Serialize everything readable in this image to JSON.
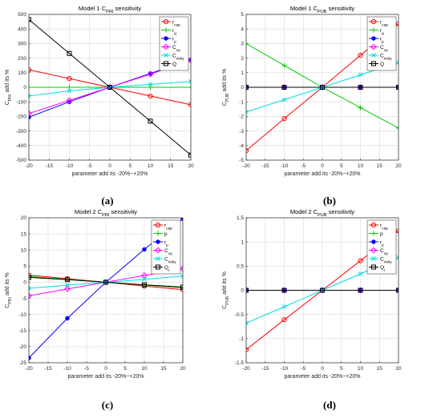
{
  "chart_data": [
    {
      "type": "line",
      "title": "Model 1 C",
      "title_sub": "PRI",
      "title_tail": " sensitivity",
      "xlabel": "parameter add its -20%~+20%",
      "ylabel": "C",
      "ylabel_sub": "PRI",
      "ylabel_tail": " add its %",
      "xlim": [
        -20,
        20
      ],
      "ylim": [
        -500,
        500
      ],
      "xticks": [
        -20,
        -15,
        -10,
        -5,
        0,
        5,
        10,
        15,
        20
      ],
      "yticks": [
        -500,
        -400,
        -300,
        -200,
        -100,
        0,
        100,
        200,
        300,
        400,
        500
      ],
      "grid": true,
      "legend_position": "top-right",
      "caption": "(a)",
      "x": [
        -20,
        -10,
        0,
        10,
        20
      ],
      "series": [
        {
          "name": "r",
          "name_sub": "cap",
          "color": "#ff0000",
          "marker": "circle",
          "values": [
            120,
            60,
            0,
            -60,
            -120
          ]
        },
        {
          "name": "r",
          "name_sub": "g",
          "color": "#00cc00",
          "marker": "plus",
          "values": [
            0,
            0,
            0,
            0,
            0
          ]
        },
        {
          "name": "r",
          "name_sub": "p",
          "color": "#0000ff",
          "marker": "dot",
          "values": [
            -205,
            -100,
            0,
            95,
            190
          ]
        },
        {
          "name": "C",
          "name_sub": "oy",
          "color": "#ff00ff",
          "marker": "diamond",
          "values": [
            -180,
            -90,
            0,
            90,
            185
          ]
        },
        {
          "name": "C",
          "name_sub": "risky",
          "color": "#00dddd",
          "marker": "x",
          "values": [
            -60,
            -25,
            0,
            20,
            40
          ]
        },
        {
          "name": "Q",
          "name_sub": "",
          "color": "#000000",
          "marker": "square",
          "values": [
            465,
            232,
            0,
            -232,
            -465
          ]
        }
      ]
    },
    {
      "type": "line",
      "title": "Model 1 C",
      "title_sub": "PUB",
      "title_tail": " sensitivity",
      "xlabel": "parameter add its -20%~+20%",
      "ylabel": "C",
      "ylabel_sub": "PUB",
      "ylabel_tail": " add its %",
      "xlim": [
        -20,
        20
      ],
      "ylim": [
        -5,
        5
      ],
      "xticks": [
        -20,
        -15,
        -10,
        -5,
        0,
        5,
        10,
        15,
        20
      ],
      "yticks": [
        -5,
        -4,
        -3,
        -2,
        -1,
        0,
        1,
        2,
        3,
        4,
        5
      ],
      "grid": true,
      "legend_position": "top-right",
      "caption": "(b)",
      "x": [
        -20,
        -10,
        0,
        10,
        20
      ],
      "series": [
        {
          "name": "r",
          "name_sub": "cap",
          "color": "#ff0000",
          "marker": "circle",
          "values": [
            -4.35,
            -2.15,
            0,
            2.2,
            4.35
          ]
        },
        {
          "name": "r",
          "name_sub": "g",
          "color": "#00cc00",
          "marker": "plus",
          "values": [
            3.0,
            1.5,
            0,
            -1.4,
            -2.8
          ]
        },
        {
          "name": "r",
          "name_sub": "p",
          "color": "#0000ff",
          "marker": "dot",
          "values": [
            0,
            0,
            0,
            0,
            0
          ]
        },
        {
          "name": "C",
          "name_sub": "oy",
          "color": "#ff00ff",
          "marker": "diamond",
          "values": [
            0,
            0,
            0,
            0,
            0
          ]
        },
        {
          "name": "C",
          "name_sub": "risky",
          "color": "#00dddd",
          "marker": "x",
          "values": [
            -1.7,
            -0.85,
            0,
            0.85,
            1.7
          ]
        },
        {
          "name": "Q",
          "name_sub": "",
          "color": "#000000",
          "marker": "square",
          "values": [
            0,
            0,
            0,
            0,
            0
          ]
        }
      ]
    },
    {
      "type": "line",
      "title": "Model 2 C",
      "title_sub": "PRI",
      "title_tail": " sensitivity",
      "xlabel": "parameter add its -20%~+20%",
      "ylabel": "C",
      "ylabel_sub": "PRI",
      "ylabel_tail": " add its %",
      "xlim": [
        -20,
        20
      ],
      "ylim": [
        -25,
        20
      ],
      "xticks": [
        -20,
        -15,
        -10,
        -5,
        0,
        5,
        10,
        15,
        20
      ],
      "yticks": [
        -25,
        -20,
        -15,
        -10,
        -5,
        0,
        5,
        10,
        15,
        20
      ],
      "grid": true,
      "legend_position": "top-right",
      "caption": "(c)",
      "x": [
        -20,
        -10,
        0,
        10,
        20
      ],
      "series": [
        {
          "name": "r",
          "name_sub": "cap",
          "color": "#ff0000",
          "marker": "circle",
          "values": [
            2.2,
            1.1,
            0,
            -1.2,
            -2.3
          ]
        },
        {
          "name": "p",
          "name_sub": "",
          "color": "#00cc00",
          "marker": "plus",
          "values": [
            1.8,
            0.9,
            0,
            -0.9,
            -1.8
          ]
        },
        {
          "name": "r",
          "name_sub": "p",
          "color": "#0000ff",
          "marker": "dot",
          "values": [
            -23.5,
            -11.2,
            0,
            10.2,
            19.7
          ]
        },
        {
          "name": "C",
          "name_sub": "oy",
          "color": "#ff00ff",
          "marker": "diamond",
          "values": [
            -4.2,
            -2.1,
            0,
            2.1,
            4.2
          ]
        },
        {
          "name": "C",
          "name_sub": "risky",
          "color": "#00dddd",
          "marker": "x",
          "values": [
            -1.9,
            -0.9,
            0,
            0.9,
            1.9
          ]
        },
        {
          "name": "Q",
          "name_sub": "I",
          "color": "#000000",
          "marker": "square",
          "values": [
            1.5,
            0.8,
            0,
            -0.8,
            -1.5
          ]
        }
      ]
    },
    {
      "type": "line",
      "title": "Model 2 C",
      "title_sub": "PUB",
      "title_tail": " sensitivity",
      "xlabel": "parameter add its -20%~+20%",
      "ylabel": "C",
      "ylabel_sub": "PUB",
      "ylabel_tail": " add its %",
      "xlim": [
        -20,
        20
      ],
      "ylim": [
        -1.5,
        1.5
      ],
      "xticks": [
        -20,
        -15,
        -10,
        -5,
        0,
        5,
        10,
        15,
        20
      ],
      "yticks": [
        -1.5,
        -1,
        -0.5,
        0,
        0.5,
        1,
        1.5
      ],
      "grid": true,
      "legend_position": "top-right",
      "caption": "(d)",
      "x": [
        -20,
        -10,
        0,
        10,
        20
      ],
      "series": [
        {
          "name": "r",
          "name_sub": "cap",
          "color": "#ff0000",
          "marker": "circle",
          "values": [
            -1.23,
            -0.61,
            0,
            0.61,
            1.23
          ]
        },
        {
          "name": "p",
          "name_sub": "",
          "color": "#00cc00",
          "marker": "plus",
          "values": [
            0,
            0,
            0,
            0,
            0
          ]
        },
        {
          "name": "r",
          "name_sub": "p",
          "color": "#0000ff",
          "marker": "dot",
          "values": [
            0,
            0,
            0,
            0,
            0
          ]
        },
        {
          "name": "C",
          "name_sub": "oy",
          "color": "#ff00ff",
          "marker": "diamond",
          "values": [
            0,
            0,
            0,
            0,
            0
          ]
        },
        {
          "name": "C",
          "name_sub": "risky",
          "color": "#00dddd",
          "marker": "x",
          "values": [
            -0.68,
            -0.34,
            0,
            0.34,
            0.68
          ]
        },
        {
          "name": "Q",
          "name_sub": "I",
          "color": "#000000",
          "marker": "square",
          "values": [
            0,
            0,
            0,
            0,
            0
          ]
        }
      ]
    }
  ]
}
